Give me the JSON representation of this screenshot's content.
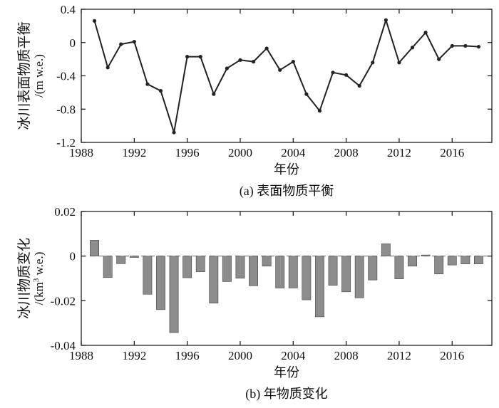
{
  "chart_data": [
    {
      "type": "line",
      "caption": "(a) 表面物质平衡",
      "xlabel": "年份",
      "ylabel_line1": "冰川表面物质平衡",
      "ylabel_line2": "/(m w.e.)",
      "xlim": [
        1988,
        2019
      ],
      "ylim": [
        -1.2,
        0.4
      ],
      "xticks": [
        1988,
        1992,
        1996,
        2000,
        2004,
        2008,
        2012,
        2016
      ],
      "yticks": [
        0.4,
        0,
        -0.4,
        -0.8,
        -1.2
      ],
      "ytick_labels": [
        "0.4",
        "0",
        "-0.4",
        "-0.8",
        "-1.2"
      ],
      "grid": false,
      "color": "#222222",
      "x": [
        1989,
        1990,
        1991,
        1992,
        1993,
        1994,
        1995,
        1996,
        1997,
        1998,
        1999,
        2000,
        2001,
        2002,
        2003,
        2004,
        2005,
        2006,
        2007,
        2008,
        2009,
        2010,
        2011,
        2012,
        2013,
        2014,
        2015,
        2016,
        2017,
        2018
      ],
      "y": [
        0.26,
        -0.3,
        -0.02,
        0.01,
        -0.5,
        -0.58,
        -1.08,
        -0.17,
        -0.17,
        -0.62,
        -0.31,
        -0.21,
        -0.23,
        -0.07,
        -0.33,
        -0.23,
        -0.62,
        -0.82,
        -0.36,
        -0.39,
        -0.52,
        -0.24,
        0.27,
        -0.24,
        -0.06,
        0.12,
        -0.2,
        -0.04,
        -0.04,
        -0.05
      ]
    },
    {
      "type": "bar",
      "caption": "(b) 年物质变化",
      "xlabel": "年份",
      "ylabel_line1": "冰川物质变化",
      "ylabel_line2_pre": "/(km",
      "ylabel_line2_sup": "3",
      "ylabel_line2_post": " w.e.)",
      "xlim": [
        1988,
        2019
      ],
      "ylim": [
        -0.04,
        0.02
      ],
      "xticks": [
        1988,
        1992,
        1996,
        2000,
        2004,
        2008,
        2012,
        2016
      ],
      "yticks": [
        0.02,
        0,
        -0.02,
        -0.04
      ],
      "ytick_labels": [
        "0.02",
        "0",
        "-0.02",
        "-0.04"
      ],
      "grid": false,
      "color": "#8c8c8c",
      "x": [
        1989,
        1990,
        1991,
        1992,
        1993,
        1994,
        1995,
        1996,
        1997,
        1998,
        1999,
        2000,
        2001,
        2002,
        2003,
        2004,
        2005,
        2006,
        2007,
        2008,
        2009,
        2010,
        2011,
        2012,
        2013,
        2014,
        2015,
        2016,
        2017,
        2018
      ],
      "values": [
        0.0071,
        -0.0096,
        -0.0034,
        -0.0006,
        -0.0171,
        -0.024,
        -0.0343,
        -0.0097,
        -0.007,
        -0.0211,
        -0.0114,
        -0.0099,
        -0.0133,
        -0.0045,
        -0.0143,
        -0.0143,
        -0.0196,
        -0.0272,
        -0.0131,
        -0.016,
        -0.0187,
        -0.0107,
        0.0055,
        -0.0102,
        -0.0045,
        0.0005,
        -0.008,
        -0.004,
        -0.0035,
        -0.0035
      ]
    }
  ]
}
